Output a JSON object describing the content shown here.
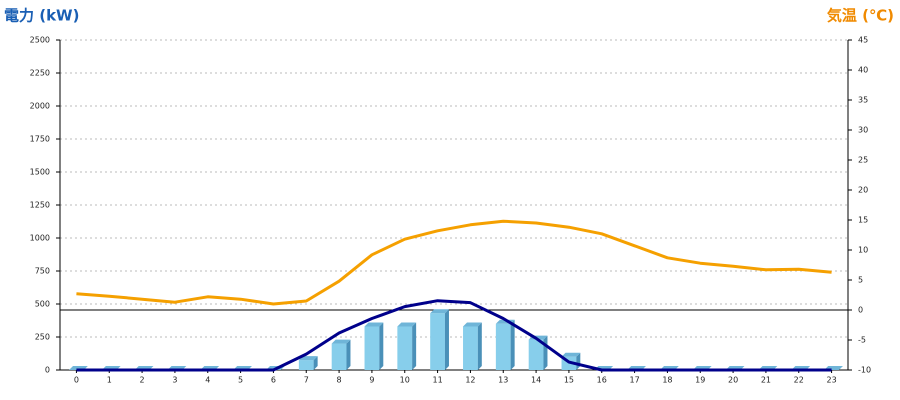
{
  "chart_data": {
    "type": "bar-line",
    "y_title": "電力 (kW)",
    "y2_title": "気温 (℃)",
    "categories": [
      "0",
      "1",
      "2",
      "3",
      "4",
      "5",
      "6",
      "7",
      "8",
      "9",
      "10",
      "11",
      "12",
      "13",
      "14",
      "15",
      "16",
      "17",
      "18",
      "19",
      "20",
      "21",
      "22",
      "23"
    ],
    "series": [
      {
        "type": "bar",
        "color": "#87ceeb",
        "values": [
          0,
          0,
          0,
          0,
          0,
          0,
          0,
          75,
          200,
          330,
          330,
          430,
          330,
          350,
          230,
          100,
          0,
          0,
          0,
          0,
          0,
          0,
          0,
          0
        ]
      },
      {
        "type": "line",
        "color": "#00008b",
        "values": [
          0,
          0,
          0,
          0,
          0,
          0,
          0,
          120,
          280,
          390,
          480,
          525,
          510,
          390,
          240,
          60,
          0,
          0,
          0,
          0,
          0,
          0,
          0,
          0
        ]
      },
      {
        "type": "line",
        "color": "#f5a000",
        "axis": "y2",
        "values": [
          2.7,
          2.3,
          1.8,
          1.3,
          2.2,
          1.8,
          1.0,
          1.5,
          4.8,
          9.2,
          11.8,
          13.2,
          14.2,
          14.8,
          14.5,
          13.8,
          12.7,
          10.7,
          8.7,
          7.8,
          7.3,
          6.7,
          6.8,
          6.3
        ]
      }
    ],
    "ylim": [
      0,
      2500
    ],
    "yticks": [
      0,
      250,
      500,
      750,
      1000,
      1250,
      1500,
      1750,
      2000,
      2250,
      2500
    ],
    "y2lim": [
      -10,
      45
    ],
    "y2ticks": [
      -10,
      -5,
      0,
      5,
      10,
      15,
      20,
      25,
      30,
      35,
      40,
      45
    ],
    "grid": true
  }
}
